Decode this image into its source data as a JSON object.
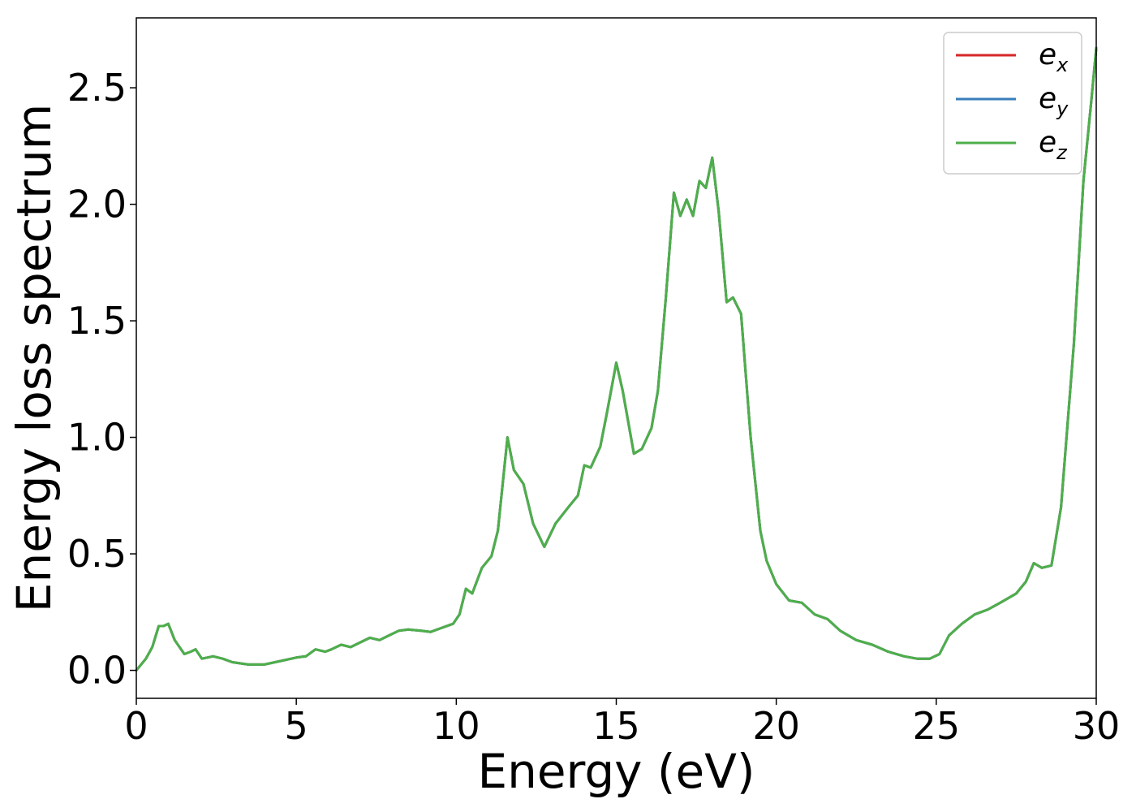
{
  "chart_data": {
    "type": "line",
    "title": "",
    "xlabel": "Energy (eV)",
    "ylabel": "Energy loss spectrum",
    "xlim": [
      0,
      30
    ],
    "ylim": [
      -0.12,
      2.8
    ],
    "xticks": [
      0,
      5,
      10,
      15,
      20,
      25,
      30
    ],
    "xtick_labels": [
      "0",
      "5",
      "10",
      "15",
      "20",
      "25",
      "30"
    ],
    "yticks": [
      0.0,
      0.5,
      1.0,
      1.5,
      2.0,
      2.5
    ],
    "ytick_labels": [
      "0.0",
      "0.5",
      "1.0",
      "1.5",
      "2.0",
      "2.5"
    ],
    "grid": false,
    "legend_position": "top-right",
    "x": [
      0,
      0.3,
      0.5,
      0.7,
      0.85,
      1.0,
      1.2,
      1.5,
      1.7,
      1.85,
      2.05,
      2.4,
      2.7,
      3.0,
      3.5,
      4.0,
      4.5,
      5.0,
      5.3,
      5.6,
      5.9,
      6.1,
      6.4,
      6.7,
      7.0,
      7.3,
      7.6,
      7.9,
      8.2,
      8.5,
      8.9,
      9.2,
      9.5,
      9.9,
      10.1,
      10.3,
      10.5,
      10.8,
      11.1,
      11.3,
      11.6,
      11.8,
      12.1,
      12.4,
      12.75,
      13.1,
      13.5,
      13.8,
      14.0,
      14.2,
      14.5,
      14.7,
      15.0,
      15.2,
      15.55,
      15.8,
      16.1,
      16.3,
      16.55,
      16.8,
      17.0,
      17.2,
      17.4,
      17.6,
      17.8,
      18.0,
      18.2,
      18.45,
      18.65,
      18.9,
      19.2,
      19.5,
      19.7,
      20.0,
      20.4,
      20.8,
      21.2,
      21.6,
      22.0,
      22.5,
      23.0,
      23.5,
      24.0,
      24.4,
      24.8,
      25.1,
      25.4,
      25.8,
      26.2,
      26.6,
      27.0,
      27.5,
      27.8,
      28.05,
      28.3,
      28.6,
      28.9,
      29.3,
      29.6,
      29.85,
      30.0
    ],
    "series": [
      {
        "name": "e_x",
        "label_base": "e",
        "label_sub": "x",
        "color": "#d62728",
        "values": [
          0.0,
          0.05,
          0.1,
          0.19,
          0.19,
          0.2,
          0.13,
          0.07,
          0.08,
          0.09,
          0.05,
          0.06,
          0.05,
          0.035,
          0.025,
          0.025,
          0.04,
          0.055,
          0.06,
          0.09,
          0.08,
          0.09,
          0.11,
          0.1,
          0.12,
          0.14,
          0.13,
          0.15,
          0.17,
          0.175,
          0.17,
          0.165,
          0.18,
          0.2,
          0.24,
          0.35,
          0.33,
          0.44,
          0.49,
          0.6,
          1.0,
          0.86,
          0.8,
          0.63,
          0.53,
          0.63,
          0.7,
          0.75,
          0.88,
          0.87,
          0.96,
          1.1,
          1.32,
          1.2,
          0.93,
          0.95,
          1.04,
          1.2,
          1.6,
          2.05,
          1.95,
          2.02,
          1.95,
          2.1,
          2.07,
          2.2,
          1.97,
          1.58,
          1.6,
          1.53,
          1.0,
          0.6,
          0.47,
          0.37,
          0.3,
          0.29,
          0.24,
          0.22,
          0.17,
          0.13,
          0.11,
          0.08,
          0.06,
          0.05,
          0.05,
          0.07,
          0.15,
          0.2,
          0.24,
          0.26,
          0.29,
          0.33,
          0.38,
          0.46,
          0.44,
          0.45,
          0.7,
          1.4,
          2.1,
          2.45,
          2.67
        ]
      },
      {
        "name": "e_y",
        "label_base": "e",
        "label_sub": "y",
        "color": "#377eb8",
        "values": [
          0.0,
          0.05,
          0.1,
          0.19,
          0.19,
          0.2,
          0.13,
          0.07,
          0.08,
          0.09,
          0.05,
          0.06,
          0.05,
          0.035,
          0.025,
          0.025,
          0.04,
          0.055,
          0.06,
          0.09,
          0.08,
          0.09,
          0.11,
          0.1,
          0.12,
          0.14,
          0.13,
          0.15,
          0.17,
          0.175,
          0.17,
          0.165,
          0.18,
          0.2,
          0.24,
          0.35,
          0.33,
          0.44,
          0.49,
          0.6,
          1.0,
          0.86,
          0.8,
          0.63,
          0.53,
          0.63,
          0.7,
          0.75,
          0.88,
          0.87,
          0.96,
          1.1,
          1.32,
          1.2,
          0.93,
          0.95,
          1.04,
          1.2,
          1.6,
          2.05,
          1.95,
          2.02,
          1.95,
          2.1,
          2.07,
          2.2,
          1.97,
          1.58,
          1.6,
          1.53,
          1.0,
          0.6,
          0.47,
          0.37,
          0.3,
          0.29,
          0.24,
          0.22,
          0.17,
          0.13,
          0.11,
          0.08,
          0.06,
          0.05,
          0.05,
          0.07,
          0.15,
          0.2,
          0.24,
          0.26,
          0.29,
          0.33,
          0.38,
          0.46,
          0.44,
          0.45,
          0.7,
          1.4,
          2.1,
          2.45,
          2.67
        ]
      },
      {
        "name": "e_z",
        "label_base": "e",
        "label_sub": "z",
        "color": "#4daf4a",
        "values": [
          0.0,
          0.05,
          0.1,
          0.19,
          0.19,
          0.2,
          0.13,
          0.07,
          0.08,
          0.09,
          0.05,
          0.06,
          0.05,
          0.035,
          0.025,
          0.025,
          0.04,
          0.055,
          0.06,
          0.09,
          0.08,
          0.09,
          0.11,
          0.1,
          0.12,
          0.14,
          0.13,
          0.15,
          0.17,
          0.175,
          0.17,
          0.165,
          0.18,
          0.2,
          0.24,
          0.35,
          0.33,
          0.44,
          0.49,
          0.6,
          1.0,
          0.86,
          0.8,
          0.63,
          0.53,
          0.63,
          0.7,
          0.75,
          0.88,
          0.87,
          0.96,
          1.1,
          1.32,
          1.2,
          0.93,
          0.95,
          1.04,
          1.2,
          1.6,
          2.05,
          1.95,
          2.02,
          1.95,
          2.1,
          2.07,
          2.2,
          1.97,
          1.58,
          1.6,
          1.53,
          1.0,
          0.6,
          0.47,
          0.37,
          0.3,
          0.29,
          0.24,
          0.22,
          0.17,
          0.13,
          0.11,
          0.08,
          0.06,
          0.05,
          0.05,
          0.07,
          0.15,
          0.2,
          0.24,
          0.26,
          0.29,
          0.33,
          0.38,
          0.46,
          0.44,
          0.45,
          0.7,
          1.4,
          2.1,
          2.45,
          2.67
        ]
      }
    ]
  }
}
